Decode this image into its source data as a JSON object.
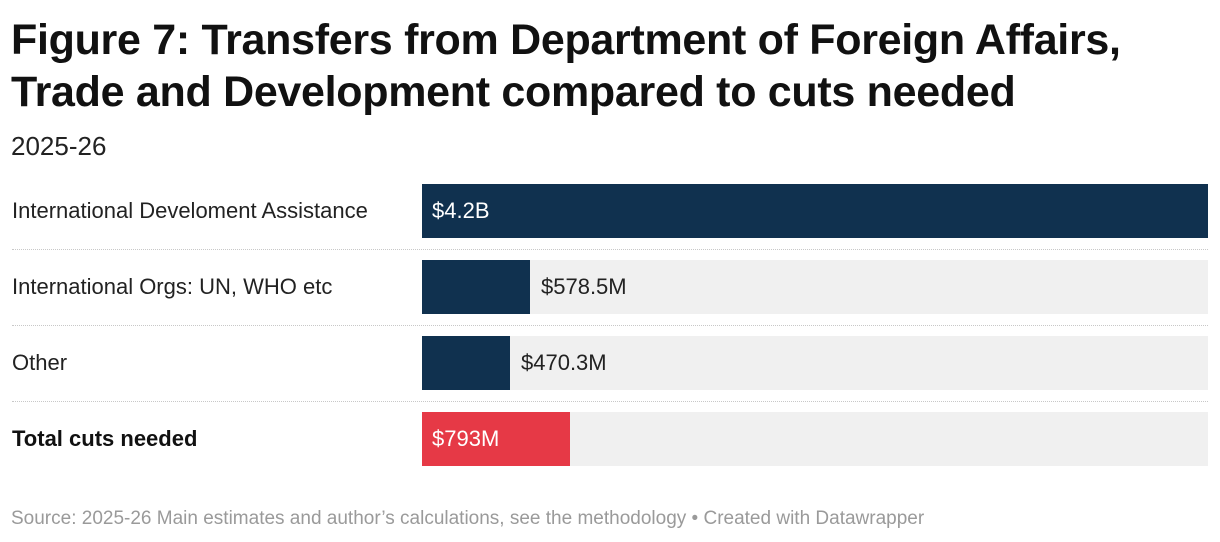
{
  "header": {
    "title": "Figure 7: Transfers from Department of Foreign Affairs, Trade and Development compared to cuts needed",
    "subtitle": "2025-26"
  },
  "footer": {
    "text": "Source: 2025-26 Main estimates and author’s calculations, see the methodology • Created with Datawrapper"
  },
  "chart_data": {
    "type": "bar",
    "orientation": "horizontal",
    "title": "Figure 7: Transfers from Department of Foreign Affairs, Trade and Development compared to cuts needed",
    "subtitle": "2025-26",
    "unit": "$ millions",
    "xlim": [
      0,
      4200
    ],
    "categories": [
      "International Develoment Assistance",
      "International Orgs: UN, WHO etc",
      "Other",
      "Total cuts needed"
    ],
    "values": [
      4200,
      578.5,
      470.3,
      793
    ],
    "value_labels": [
      "$4.2B",
      "$578.5M",
      "$470.3M",
      "$793M"
    ],
    "bold_categories": [
      "Total cuts needed"
    ],
    "colors": [
      "#10314f",
      "#10314f",
      "#10314f",
      "#e63946"
    ],
    "track_color": "#f0f0f0"
  }
}
